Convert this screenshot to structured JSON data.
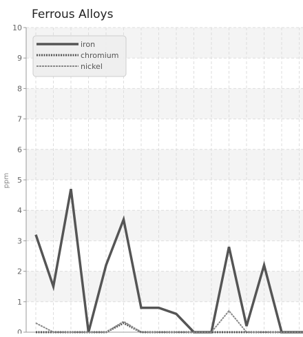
{
  "chart_data": {
    "type": "line",
    "title": "Ferrous Alloys",
    "xlabel": "",
    "ylabel": "ppm",
    "ylim": [
      0,
      10
    ],
    "yticks": [
      0,
      1,
      2,
      3,
      4,
      5,
      6,
      7,
      8,
      9,
      10
    ],
    "grid": true,
    "legend_position": "top-left",
    "x": [
      1,
      2,
      3,
      4,
      5,
      6,
      7,
      8,
      9,
      10,
      11,
      12,
      13,
      14,
      15,
      16,
      17,
      18
    ],
    "series": [
      {
        "name": "iron",
        "style": "solid",
        "color": "#555555",
        "values": [
          3.2,
          1.5,
          4.7,
          0,
          2.2,
          3.7,
          0.8,
          0.8,
          0.6,
          0,
          0,
          2.8,
          0.2,
          2.2,
          0,
          0,
          0,
          0
        ]
      },
      {
        "name": "chromium",
        "style": "dotted",
        "color": "#555555",
        "values": [
          0,
          0,
          0,
          0,
          0,
          0.3,
          0,
          0,
          0,
          0,
          0,
          0,
          0,
          0,
          0,
          0,
          0,
          0
        ]
      },
      {
        "name": "nickel",
        "style": "dashed",
        "color": "#888888",
        "values": [
          0.3,
          0,
          0,
          0,
          0,
          0.35,
          0,
          0,
          0,
          0,
          0,
          0.7,
          0,
          0,
          0,
          0,
          0,
          0
        ]
      }
    ]
  }
}
